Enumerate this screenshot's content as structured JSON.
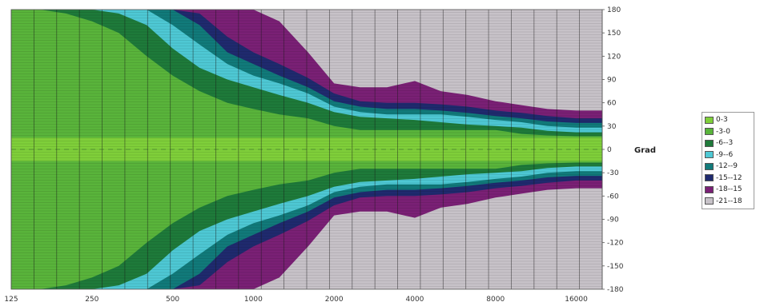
{
  "chart_data": {
    "type": "area",
    "title": "",
    "xlabel": "",
    "ylabel": "Grad",
    "x_scale": "log",
    "x_ticks": [
      125,
      250,
      500,
      1000,
      2000,
      4000,
      8000,
      16000
    ],
    "x_tick_labels": [
      "125",
      "250",
      "500",
      "1000",
      "2000",
      "4000",
      "8000",
      "16000"
    ],
    "xlim": [
      125,
      20000
    ],
    "y_ticks": [
      180,
      150,
      120,
      90,
      60,
      30,
      0,
      -30,
      -60,
      -90,
      -120,
      -150,
      -180
    ],
    "y_tick_labels": [
      "180",
      "150",
      "120",
      "90",
      "60",
      "30",
      "0",
      "-30",
      "-60",
      "-90",
      "-120",
      "-150",
      "-180"
    ],
    "ylim": [
      -180,
      180
    ],
    "y_axis_position": "right",
    "grid": true,
    "legend_position": "right",
    "description_of_values": "Upper boundary angle (degrees) of each level band; lower half is a mirror image",
    "frequencies": [
      125,
      160,
      200,
      250,
      315,
      400,
      500,
      630,
      800,
      1000,
      1250,
      1600,
      2000,
      2500,
      3150,
      4000,
      5000,
      6300,
      8000,
      10000,
      12500,
      16000,
      20000
    ],
    "series": [
      {
        "name": "0-3",
        "color": "#7fcf3a",
        "values": [
          180,
          180,
          180,
          180,
          180,
          180,
          180,
          180,
          180,
          180,
          180,
          180,
          180,
          180,
          180,
          180,
          180,
          180,
          180,
          180,
          180,
          180,
          180
        ]
      },
      {
        "name": "-3-0",
        "color": "#59b43b",
        "values": [
          180,
          180,
          180,
          180,
          180,
          180,
          180,
          180,
          180,
          180,
          180,
          180,
          180,
          180,
          180,
          180,
          180,
          180,
          180,
          180,
          180,
          180,
          180
        ]
      },
      {
        "name": "-6--3",
        "color": "#1e7a3a",
        "values": [
          180,
          180,
          180,
          180,
          180,
          180,
          180,
          180,
          180,
          180,
          180,
          180,
          180,
          180,
          180,
          180,
          180,
          180,
          180,
          180,
          180,
          180,
          180
        ]
      },
      {
        "name": "-9--6",
        "color": "#4ec8d4",
        "values": [
          180,
          180,
          180,
          180,
          180,
          180,
          180,
          180,
          180,
          180,
          180,
          180,
          180,
          180,
          180,
          180,
          180,
          180,
          180,
          180,
          180,
          180,
          180
        ]
      },
      {
        "name": "-12--9",
        "color": "#117a7a",
        "values": [
          180,
          180,
          180,
          180,
          180,
          180,
          180,
          180,
          180,
          180,
          180,
          180,
          180,
          180,
          180,
          180,
          180,
          180,
          180,
          180,
          180,
          180,
          180
        ]
      },
      {
        "name": "-15--12",
        "color": "#1f2a6e",
        "values": [
          180,
          180,
          180,
          180,
          180,
          180,
          180,
          180,
          180,
          180,
          180,
          180,
          180,
          180,
          180,
          180,
          180,
          180,
          180,
          180,
          180,
          180,
          180
        ]
      },
      {
        "name": "-18--15",
        "color": "#7a2075",
        "values": [
          180,
          180,
          180,
          180,
          180,
          180,
          180,
          180,
          180,
          180,
          180,
          180,
          180,
          180,
          180,
          180,
          180,
          180,
          180,
          180,
          180,
          180,
          180
        ]
      },
      {
        "name": "-21--18",
        "color": "#c7c2c8",
        "values": [
          180,
          180,
          180,
          180,
          180,
          180,
          180,
          180,
          180,
          180,
          180,
          180,
          180,
          180,
          180,
          180,
          180,
          180,
          180,
          180,
          180,
          180,
          180
        ]
      }
    ],
    "band_boundaries": [
      {
        "band": "0-3",
        "values": [
          15,
          15,
          15,
          15,
          15,
          15,
          15,
          15,
          15,
          15,
          15,
          15,
          15,
          15,
          15,
          15,
          15,
          15,
          15,
          15,
          15,
          15,
          15
        ]
      },
      {
        "band": "-3-0",
        "values": [
          180,
          180,
          175,
          165,
          150,
          120,
          95,
          75,
          60,
          52,
          45,
          40,
          30,
          25,
          25,
          25,
          25,
          25,
          25,
          20,
          18,
          17,
          17
        ]
      },
      {
        "band": "-6--3",
        "values": [
          180,
          180,
          180,
          180,
          175,
          160,
          130,
          105,
          90,
          80,
          70,
          60,
          48,
          42,
          40,
          38,
          35,
          32,
          30,
          28,
          24,
          22,
          22
        ]
      },
      {
        "band": "-9--6",
        "values": [
          180,
          180,
          180,
          180,
          180,
          180,
          160,
          135,
          110,
          95,
          85,
          72,
          55,
          48,
          45,
          45,
          45,
          42,
          38,
          35,
          30,
          28,
          28
        ]
      },
      {
        "band": "-12--9",
        "values": [
          180,
          180,
          180,
          180,
          180,
          180,
          180,
          160,
          125,
          110,
          95,
          80,
          62,
          55,
          52,
          52,
          50,
          47,
          43,
          40,
          36,
          34,
          34
        ]
      },
      {
        "band": "-15--12",
        "values": [
          180,
          180,
          180,
          180,
          180,
          180,
          180,
          175,
          145,
          125,
          110,
          92,
          72,
          62,
          60,
          60,
          58,
          55,
          50,
          47,
          43,
          40,
          40
        ]
      },
      {
        "band": "-18--15",
        "values": [
          180,
          180,
          180,
          180,
          180,
          180,
          180,
          180,
          180,
          180,
          165,
          125,
          85,
          80,
          80,
          88,
          75,
          70,
          62,
          57,
          52,
          50,
          50
        ]
      }
    ]
  },
  "colors": {
    "grid": "#1a1a1a",
    "background": "#ffffff"
  }
}
